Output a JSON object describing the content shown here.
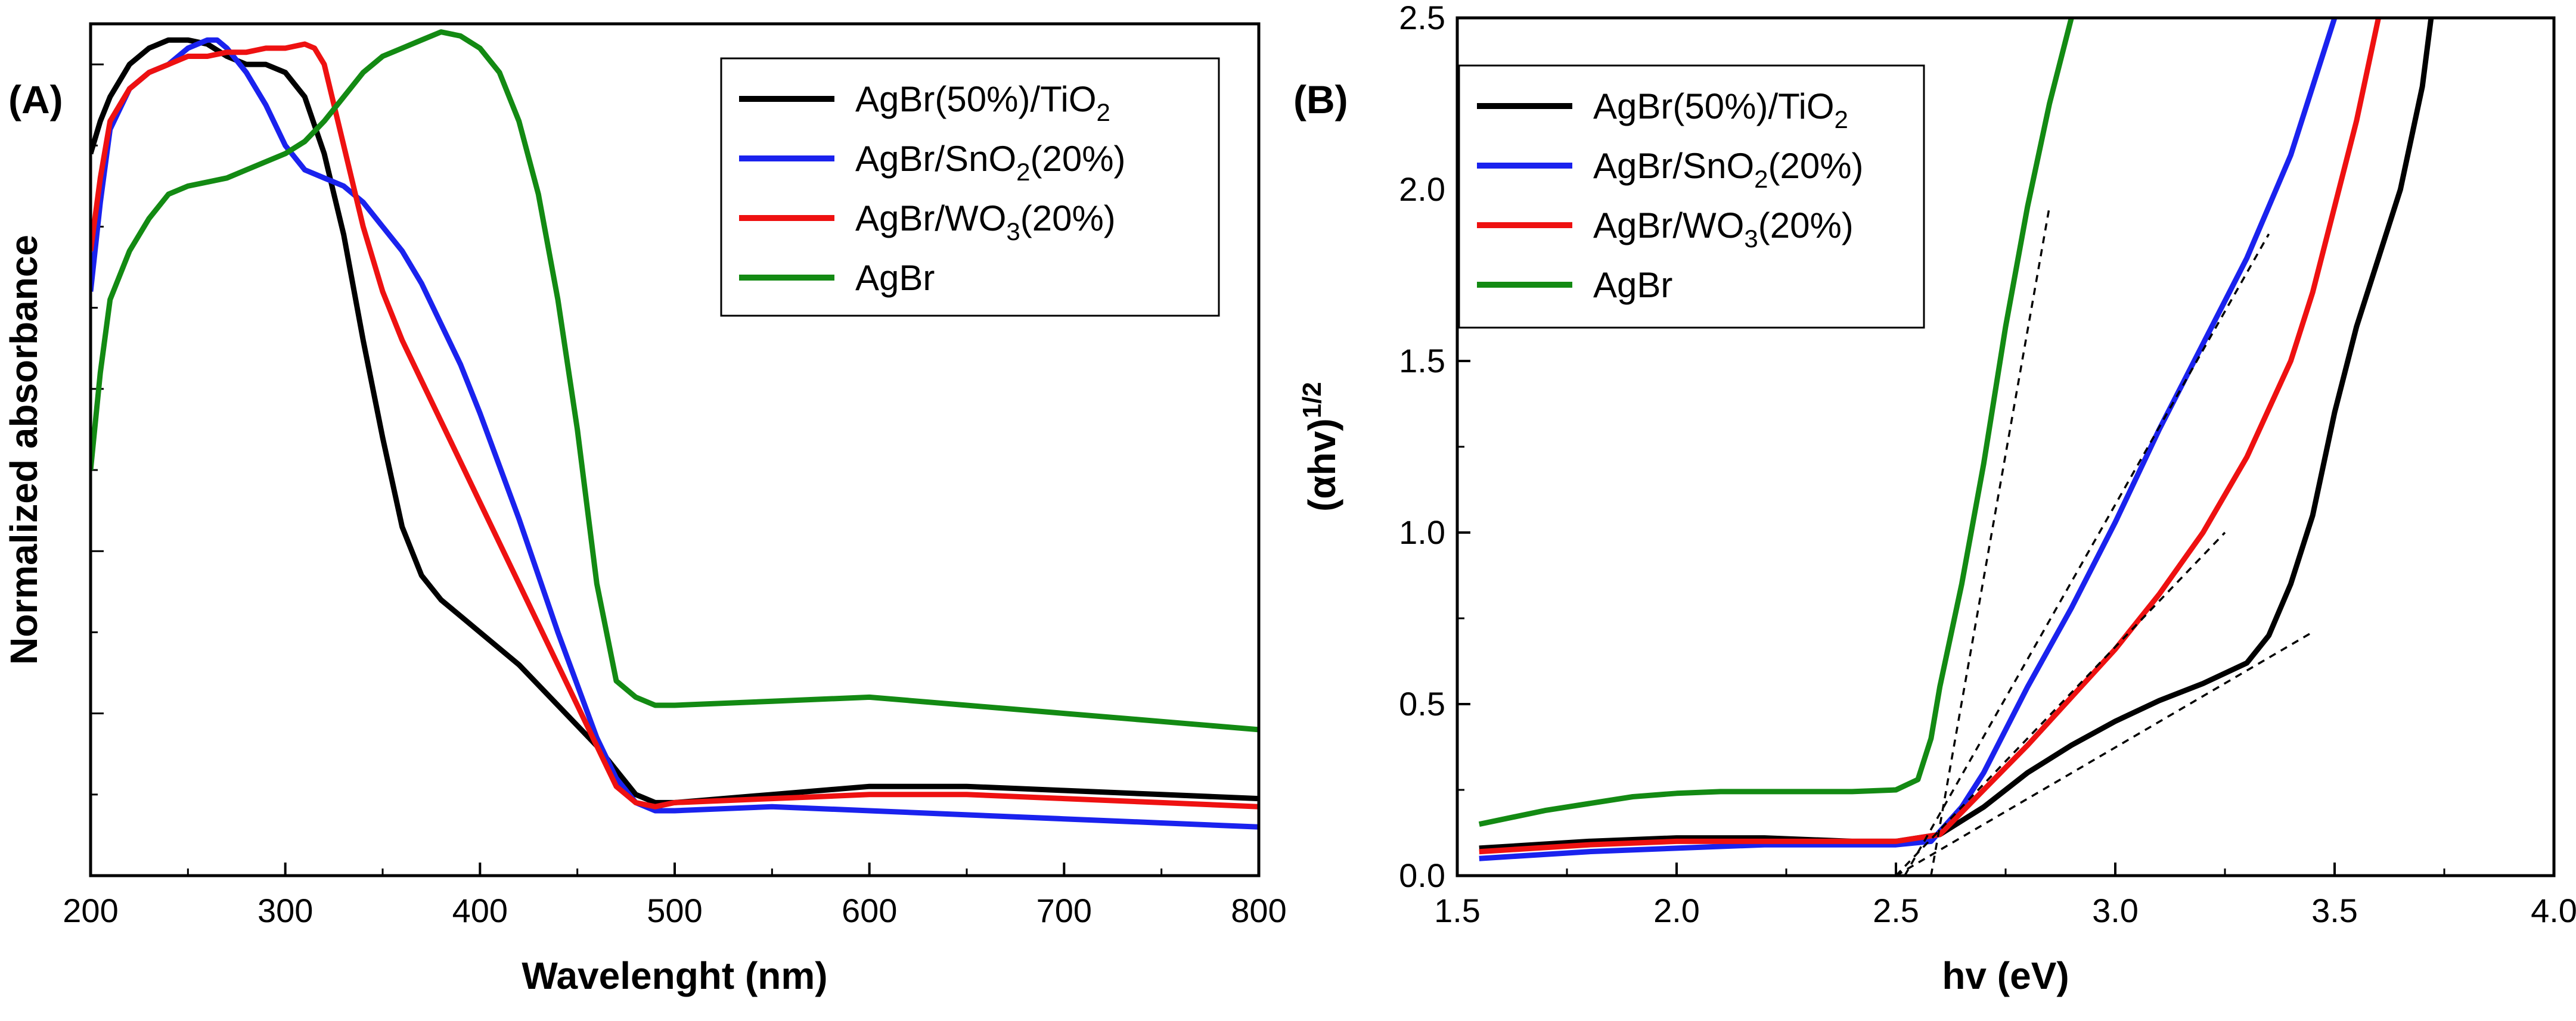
{
  "chart_data": [
    {
      "panel_label": "(A)",
      "type": "line",
      "xlabel": "Wavelenght (nm)",
      "ylabel": "Normalized absorbance",
      "xlim": [
        200,
        800
      ],
      "ylim": [
        0,
        1.05
      ],
      "xticks": [
        200,
        300,
        400,
        500,
        600,
        700,
        800
      ],
      "xtick_labels": [
        "200",
        "300",
        "400",
        "500",
        "600",
        "700",
        "800"
      ],
      "show_y_tick_labels": false,
      "legend_position": "top-right",
      "series": [
        {
          "name": "AgBr(50%)/TiO2",
          "legend_base": "AgBr(50%)/TiO",
          "legend_sub": "2",
          "legend_tail": "",
          "color": "#000000",
          "x": [
            200,
            205,
            210,
            220,
            230,
            240,
            250,
            260,
            270,
            280,
            290,
            300,
            310,
            320,
            325,
            330,
            340,
            350,
            360,
            370,
            380,
            390,
            400,
            420,
            440,
            460,
            470,
            480,
            490,
            500,
            550,
            600,
            650,
            700,
            750,
            800
          ],
          "y": [
            0.89,
            0.93,
            0.96,
            1.0,
            1.02,
            1.03,
            1.03,
            1.025,
            1.01,
            1.0,
            1.0,
            0.99,
            0.96,
            0.89,
            0.84,
            0.79,
            0.66,
            0.54,
            0.43,
            0.37,
            0.34,
            0.32,
            0.3,
            0.26,
            0.21,
            0.16,
            0.13,
            0.1,
            0.09,
            0.09,
            0.1,
            0.11,
            0.11,
            0.105,
            0.1,
            0.095
          ]
        },
        {
          "name": "AgBr/SnO2(20%)",
          "legend_base": "AgBr/SnO",
          "legend_sub": "2",
          "legend_tail": "(20%)",
          "color": "#1a22ee",
          "x": [
            200,
            205,
            210,
            220,
            230,
            240,
            250,
            260,
            265,
            270,
            280,
            290,
            300,
            310,
            320,
            330,
            340,
            350,
            360,
            370,
            380,
            390,
            400,
            420,
            440,
            460,
            470,
            480,
            490,
            500,
            550,
            600,
            650,
            700,
            750,
            800
          ],
          "y": [
            0.72,
            0.83,
            0.92,
            0.97,
            0.99,
            1.0,
            1.02,
            1.03,
            1.03,
            1.02,
            0.99,
            0.95,
            0.9,
            0.87,
            0.86,
            0.85,
            0.83,
            0.8,
            0.77,
            0.73,
            0.68,
            0.63,
            0.57,
            0.44,
            0.3,
            0.17,
            0.12,
            0.09,
            0.08,
            0.08,
            0.085,
            0.08,
            0.075,
            0.07,
            0.065,
            0.06
          ]
        },
        {
          "name": "AgBr/WO3(20%)",
          "legend_base": "AgBr/WO",
          "legend_sub": "3",
          "legend_tail": "(20%)",
          "color": "#ee1111",
          "x": [
            200,
            205,
            210,
            220,
            230,
            240,
            250,
            260,
            270,
            280,
            290,
            300,
            310,
            315,
            320,
            330,
            340,
            350,
            360,
            370,
            380,
            390,
            400,
            420,
            440,
            460,
            470,
            480,
            490,
            500,
            550,
            600,
            650,
            700,
            750,
            800
          ],
          "y": [
            0.77,
            0.86,
            0.93,
            0.97,
            0.99,
            1.0,
            1.01,
            1.01,
            1.015,
            1.015,
            1.02,
            1.02,
            1.025,
            1.02,
            1.0,
            0.9,
            0.8,
            0.72,
            0.66,
            0.61,
            0.56,
            0.51,
            0.46,
            0.36,
            0.26,
            0.16,
            0.11,
            0.09,
            0.085,
            0.09,
            0.095,
            0.1,
            0.1,
            0.095,
            0.09,
            0.085
          ]
        },
        {
          "name": "AgBr",
          "legend_base": "AgBr",
          "legend_sub": "",
          "legend_tail": "",
          "color": "#138a13",
          "x": [
            200,
            205,
            210,
            220,
            230,
            240,
            250,
            260,
            270,
            280,
            290,
            300,
            310,
            320,
            330,
            340,
            350,
            360,
            370,
            380,
            390,
            400,
            410,
            420,
            430,
            440,
            450,
            460,
            470,
            480,
            490,
            500,
            550,
            600,
            650,
            700,
            750,
            800
          ],
          "y": [
            0.5,
            0.62,
            0.71,
            0.77,
            0.81,
            0.84,
            0.85,
            0.855,
            0.86,
            0.87,
            0.88,
            0.89,
            0.905,
            0.93,
            0.96,
            0.99,
            1.01,
            1.02,
            1.03,
            1.04,
            1.035,
            1.02,
            0.99,
            0.93,
            0.84,
            0.71,
            0.55,
            0.36,
            0.24,
            0.22,
            0.21,
            0.21,
            0.215,
            0.22,
            0.21,
            0.2,
            0.19,
            0.18
          ]
        }
      ]
    },
    {
      "panel_label": "(B)",
      "type": "line",
      "xlabel": "hv (eV)",
      "ylabel": "(αhv)",
      "ylabel_sup": "1/2",
      "xlim": [
        1.5,
        4.0
      ],
      "ylim": [
        0.0,
        2.5
      ],
      "xticks": [
        1.5,
        2.0,
        2.5,
        3.0,
        3.5,
        4.0
      ],
      "xtick_labels": [
        "1.5",
        "2.0",
        "2.5",
        "3.0",
        "3.5",
        "4.0"
      ],
      "yticks": [
        0.0,
        0.5,
        1.0,
        1.5,
        2.0,
        2.5
      ],
      "ytick_labels": [
        "0.0",
        "0.5",
        "1.0",
        "1.5",
        "2.0",
        "2.5"
      ],
      "legend_position": "top-left",
      "series": [
        {
          "name": "AgBr(50%)/TiO2",
          "legend_base": "AgBr(50%)/TiO",
          "legend_sub": "2",
          "legend_tail": "",
          "color": "#000000",
          "x": [
            1.55,
            1.8,
            2.0,
            2.2,
            2.4,
            2.5,
            2.6,
            2.7,
            2.8,
            2.9,
            3.0,
            3.1,
            3.2,
            3.3,
            3.35,
            3.4,
            3.45,
            3.5,
            3.55,
            3.6,
            3.65,
            3.7,
            3.72
          ],
          "y": [
            0.08,
            0.1,
            0.11,
            0.11,
            0.1,
            0.1,
            0.12,
            0.2,
            0.3,
            0.38,
            0.45,
            0.51,
            0.56,
            0.62,
            0.7,
            0.85,
            1.05,
            1.35,
            1.6,
            1.8,
            2.0,
            2.3,
            2.5
          ]
        },
        {
          "name": "AgBr/SnO2(20%)",
          "legend_base": "AgBr/SnO",
          "legend_sub": "2",
          "legend_tail": "(20%)",
          "color": "#1a22ee",
          "x": [
            1.55,
            1.8,
            2.0,
            2.2,
            2.4,
            2.5,
            2.58,
            2.65,
            2.7,
            2.8,
            2.9,
            3.0,
            3.1,
            3.2,
            3.3,
            3.4,
            3.45,
            3.5
          ],
          "y": [
            0.05,
            0.07,
            0.08,
            0.09,
            0.09,
            0.09,
            0.1,
            0.2,
            0.3,
            0.55,
            0.78,
            1.03,
            1.3,
            1.55,
            1.8,
            2.1,
            2.3,
            2.5
          ]
        },
        {
          "name": "AgBr/WO3(20%)",
          "legend_base": "AgBr/WO",
          "legend_sub": "3",
          "legend_tail": "(20%)",
          "color": "#ee1111",
          "x": [
            1.55,
            1.8,
            2.0,
            2.2,
            2.4,
            2.5,
            2.6,
            2.7,
            2.8,
            2.9,
            3.0,
            3.1,
            3.2,
            3.3,
            3.4,
            3.45,
            3.5,
            3.55,
            3.6
          ],
          "y": [
            0.07,
            0.09,
            0.1,
            0.1,
            0.1,
            0.1,
            0.12,
            0.25,
            0.38,
            0.52,
            0.66,
            0.82,
            1.0,
            1.22,
            1.5,
            1.7,
            1.95,
            2.2,
            2.5
          ]
        },
        {
          "name": "AgBr",
          "legend_base": "AgBr",
          "legend_sub": "",
          "legend_tail": "",
          "color": "#138a13",
          "x": [
            1.55,
            1.7,
            1.8,
            1.9,
            2.0,
            2.1,
            2.2,
            2.3,
            2.4,
            2.5,
            2.55,
            2.58,
            2.6,
            2.65,
            2.7,
            2.75,
            2.8,
            2.85,
            2.9
          ],
          "y": [
            0.15,
            0.19,
            0.21,
            0.23,
            0.24,
            0.245,
            0.245,
            0.245,
            0.245,
            0.25,
            0.28,
            0.4,
            0.55,
            0.85,
            1.2,
            1.6,
            1.95,
            2.25,
            2.5
          ]
        }
      ],
      "tangent_lines": [
        {
          "name": "AgBr",
          "x": [
            2.58,
            2.85
          ],
          "y": [
            0.0,
            1.95
          ]
        },
        {
          "name": "AgBr/SnO2(20%)",
          "x": [
            2.52,
            3.35
          ],
          "y": [
            0.0,
            1.87
          ]
        },
        {
          "name": "AgBr/WO3(20%)",
          "x": [
            2.5,
            3.25
          ],
          "y": [
            0.0,
            1.0
          ]
        },
        {
          "name": "AgBr(50%)/TiO2",
          "x": [
            2.5,
            3.45
          ],
          "y": [
            0.0,
            0.71
          ]
        }
      ]
    }
  ]
}
